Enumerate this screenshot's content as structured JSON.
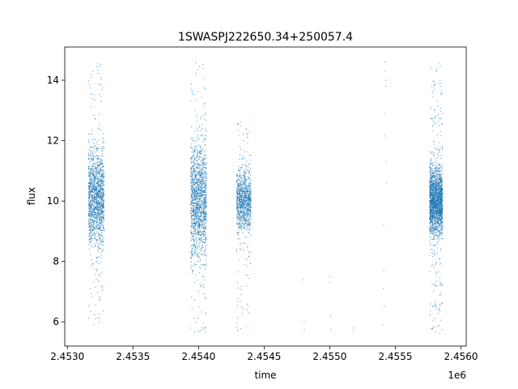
{
  "chart_data": {
    "type": "scatter",
    "title": "1SWASPJ222650.34+250057.4",
    "xlabel": "time",
    "ylabel": "flux",
    "x_offset_label": "1e6",
    "xlim": [
      2452980,
      2456040
    ],
    "ylim": [
      5.2,
      15.1
    ],
    "x_ticks": [
      2.453,
      2.4535,
      2.454,
      2.4545,
      2.455,
      2.4555,
      2.456
    ],
    "x_tick_labels": [
      "2.4530",
      "2.4535",
      "2.4540",
      "2.4545",
      "2.4550",
      "2.4555",
      "2.4560"
    ],
    "y_ticks": [
      6,
      8,
      10,
      12,
      14
    ],
    "y_tick_labels": [
      "6",
      "8",
      "10",
      "12",
      "14"
    ],
    "grid": false,
    "legend": "none",
    "marker_color": "#1f77b4",
    "clusters": [
      {
        "x_start": 2453160,
        "x_end": 2453280,
        "y_center": 10.1,
        "y_core_sd": 0.75,
        "y_min": 5.7,
        "y_max": 14.6,
        "density": 1.0
      },
      {
        "x_start": 2453940,
        "x_end": 2454060,
        "y_center": 10.0,
        "y_core_sd": 0.95,
        "y_min": 5.6,
        "y_max": 14.6,
        "density": 1.0
      },
      {
        "x_start": 2454290,
        "x_end": 2454400,
        "y_center": 10.0,
        "y_core_sd": 0.5,
        "y_min": 5.7,
        "y_max": 12.7,
        "density": 0.7
      },
      {
        "x_start": 2455760,
        "x_end": 2455860,
        "y_center": 10.0,
        "y_core_sd": 0.55,
        "y_min": 5.6,
        "y_max": 14.6,
        "density": 1.4
      }
    ],
    "sparse_points": [
      {
        "x": 2454800,
        "y": 7.4
      },
      {
        "x": 2454805,
        "y": 6.0
      },
      {
        "x": 2454806,
        "y": 5.75
      },
      {
        "x": 2455000,
        "y": 7.5
      },
      {
        "x": 2455002,
        "y": 7.3
      },
      {
        "x": 2455005,
        "y": 6.2
      },
      {
        "x": 2455008,
        "y": 5.75
      },
      {
        "x": 2455180,
        "y": 5.8
      },
      {
        "x": 2455182,
        "y": 5.7
      },
      {
        "x": 2455420,
        "y": 14.6
      },
      {
        "x": 2455422,
        "y": 14.3
      },
      {
        "x": 2455425,
        "y": 14.0
      },
      {
        "x": 2455427,
        "y": 13.8
      },
      {
        "x": 2455418,
        "y": 12.9
      },
      {
        "x": 2455421,
        "y": 12.2
      },
      {
        "x": 2455424,
        "y": 12.1
      },
      {
        "x": 2455410,
        "y": 9.2
      },
      {
        "x": 2455412,
        "y": 7.7
      },
      {
        "x": 2455408,
        "y": 7.1
      },
      {
        "x": 2455415,
        "y": 6.5
      },
      {
        "x": 2455405,
        "y": 5.9
      },
      {
        "x": 2455430,
        "y": 11.3
      },
      {
        "x": 2455433,
        "y": 10.6
      }
    ]
  }
}
